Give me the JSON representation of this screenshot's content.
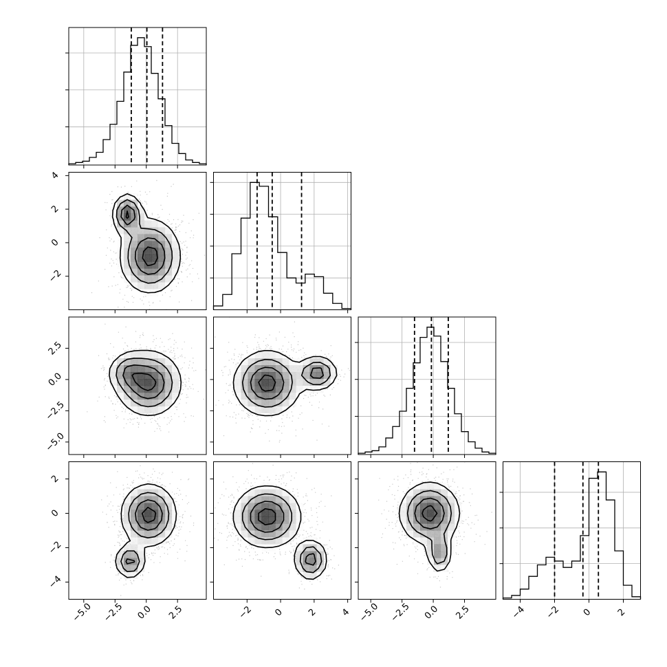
{
  "chart_data": {
    "type": "corner",
    "colors": {
      "line": "#000000",
      "grid": "#b0b0b0",
      "scatter": "#b8b8b8"
    },
    "panel_grid": true,
    "variables": [
      {
        "index": 0,
        "range": [
          -6.2,
          4.8
        ],
        "ticks": [
          -5.0,
          -2.5,
          0.0,
          2.5
        ],
        "tick_labels": [
          "−5.0",
          "−2.5",
          "0.0",
          "2.5"
        ],
        "quantiles": [
          -1.2,
          0.05,
          1.3
        ]
      },
      {
        "index": 1,
        "range": [
          -4.0,
          4.2
        ],
        "ticks": [
          -2,
          0,
          2,
          4
        ],
        "tick_labels": [
          "−2",
          "0",
          "2",
          "4"
        ],
        "quantiles": [
          -1.4,
          -0.5,
          1.25
        ]
      },
      {
        "index": 2,
        "range": [
          -6.0,
          5.0
        ],
        "ticks": [
          -5.0,
          -2.5,
          0.0,
          2.5
        ],
        "tick_labels": [
          "−5.0",
          "−2.5",
          "0.0",
          "2.5"
        ],
        "quantiles": [
          -1.5,
          -0.15,
          1.2
        ]
      },
      {
        "index": 3,
        "range": [
          -5.0,
          3.0
        ],
        "ticks": [
          -4,
          -2,
          0,
          2
        ],
        "tick_labels": [
          "−4",
          "−2",
          "0",
          "2"
        ],
        "quantiles": [
          -2.0,
          -0.35,
          0.55
        ]
      }
    ],
    "histograms": [
      {
        "var": 0,
        "counts": [
          0.01,
          0.02,
          0.03,
          0.06,
          0.1,
          0.2,
          0.32,
          0.5,
          0.73,
          0.94,
          1.0,
          0.93,
          0.72,
          0.52,
          0.31,
          0.17,
          0.09,
          0.04,
          0.02,
          0.01
        ],
        "y_ticks": [
          0.3,
          0.59,
          0.88
        ]
      },
      {
        "var": 1,
        "counts": [
          0.03,
          0.12,
          0.44,
          0.72,
          1.0,
          0.97,
          0.73,
          0.45,
          0.25,
          0.21,
          0.28,
          0.26,
          0.13,
          0.05,
          0.01
        ],
        "y_ticks": [
          0.25,
          0.5,
          0.75,
          1.0
        ]
      },
      {
        "var": 2,
        "counts": [
          0.01,
          0.02,
          0.03,
          0.06,
          0.13,
          0.22,
          0.34,
          0.52,
          0.72,
          0.92,
          1.0,
          0.93,
          0.73,
          0.52,
          0.32,
          0.18,
          0.1,
          0.05,
          0.02,
          0.01
        ],
        "y_ticks": [
          0.3,
          0.59,
          0.88
        ]
      },
      {
        "var": 3,
        "counts": [
          0.01,
          0.03,
          0.08,
          0.18,
          0.27,
          0.33,
          0.3,
          0.25,
          0.3,
          0.5,
          0.95,
          1.0,
          0.78,
          0.38,
          0.11,
          0.02
        ],
        "y_ticks": [
          0.28,
          0.56,
          0.84
        ]
      }
    ],
    "pairs": [
      {
        "x_var": 0,
        "y_var": 1,
        "clusters": [
          {
            "cx": 0.3,
            "cy": -0.8,
            "sx": 1.2,
            "sy": 1.1,
            "weight": 0.8
          },
          {
            "cx": -1.5,
            "cy": 1.7,
            "sx": 0.6,
            "sy": 0.6,
            "weight": 0.2
          }
        ]
      },
      {
        "x_var": 0,
        "y_var": 2,
        "clusters": [
          {
            "cx": 0.2,
            "cy": -0.3,
            "sx": 1.3,
            "sy": 1.3,
            "weight": 0.85
          },
          {
            "cx": -1.5,
            "cy": 0.6,
            "sx": 0.8,
            "sy": 0.8,
            "weight": 0.15
          }
        ]
      },
      {
        "x_var": 1,
        "y_var": 2,
        "clusters": [
          {
            "cx": -0.8,
            "cy": -0.3,
            "sx": 1.0,
            "sy": 1.3,
            "weight": 0.8
          },
          {
            "cx": 2.2,
            "cy": 0.5,
            "sx": 0.6,
            "sy": 0.7,
            "weight": 0.2
          }
        ]
      },
      {
        "x_var": 0,
        "y_var": 3,
        "clusters": [
          {
            "cx": 0.2,
            "cy": -0.1,
            "sx": 1.1,
            "sy": 0.9,
            "weight": 0.82
          },
          {
            "cx": -1.3,
            "cy": -2.8,
            "sx": 0.6,
            "sy": 0.5,
            "weight": 0.18
          }
        ]
      },
      {
        "x_var": 1,
        "y_var": 3,
        "clusters": [
          {
            "cx": -0.8,
            "cy": -0.2,
            "sx": 1.0,
            "sy": 0.9,
            "weight": 0.8
          },
          {
            "cx": 1.8,
            "cy": -2.7,
            "sx": 0.5,
            "sy": 0.6,
            "weight": 0.2
          }
        ]
      },
      {
        "x_var": 2,
        "y_var": 3,
        "clusters": [
          {
            "cx": -0.3,
            "cy": 0.0,
            "sx": 1.2,
            "sy": 0.9,
            "weight": 0.85
          },
          {
            "cx": 0.5,
            "cy": -2.3,
            "sx": 0.5,
            "sy": 0.6,
            "weight": 0.15
          }
        ]
      }
    ]
  }
}
